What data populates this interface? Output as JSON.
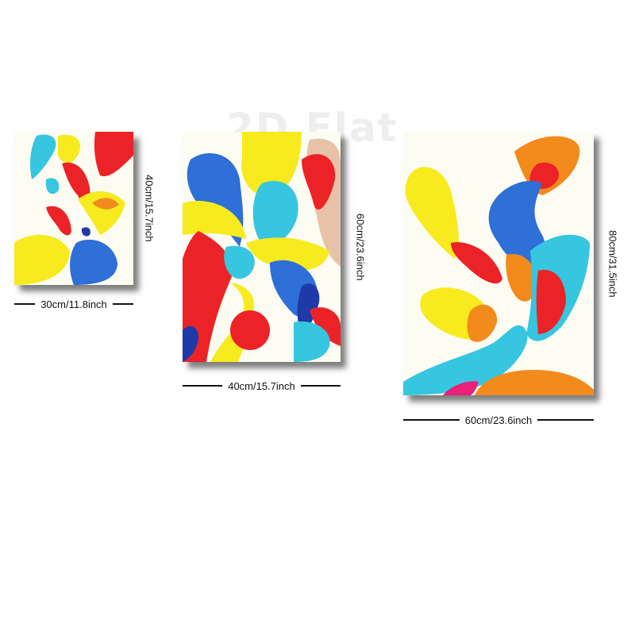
{
  "watermark": "2D Flat",
  "panels": [
    {
      "id": "small",
      "width_label": "30cm/11.8inch",
      "height_label": "40cm/15.7inch"
    },
    {
      "id": "medium",
      "width_label": "40cm/15.7inch",
      "height_label": "60cm/23.6inch"
    },
    {
      "id": "large",
      "width_label": "60cm/23.6inch",
      "height_label": "80cm/31.5inch"
    }
  ],
  "colors": {
    "background": "#fdfcf3",
    "yellow": "#f7ea1e",
    "blue": "#2e6fd8",
    "cyan": "#36c6e0",
    "red": "#ec2326",
    "orange": "#f38a1c",
    "magenta": "#ec1f7a",
    "navy": "#1d3aa8"
  }
}
